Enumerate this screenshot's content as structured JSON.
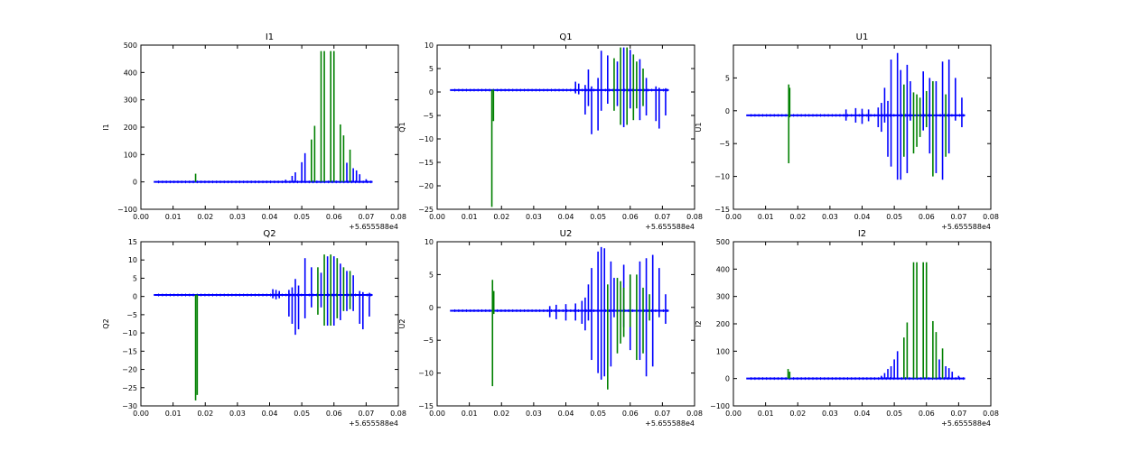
{
  "figure": {
    "colors": {
      "blue": "#0000ff",
      "green": "#008000"
    }
  },
  "chart_data": [
    {
      "type": "line",
      "title": "I1",
      "xlabel": "",
      "ylabel": "I1",
      "x_offset_label": "+5.655588e4",
      "xlim": [
        0.0,
        0.08
      ],
      "ylim": [
        -100,
        500
      ],
      "xticks": [
        "0.00",
        "0.01",
        "0.02",
        "0.03",
        "0.04",
        "0.05",
        "0.06",
        "0.07",
        "0.08"
      ],
      "yticks": [
        "−100",
        "0",
        "100",
        "200",
        "300",
        "400",
        "500"
      ],
      "grid": false,
      "baseline": {
        "x": [
          0.004,
          0.072
        ],
        "y": 0
      },
      "series": [
        {
          "color": "blue",
          "spikes": [
            [
              0.045,
              0,
              8
            ],
            [
              0.047,
              0,
              22
            ],
            [
              0.048,
              0,
              35
            ],
            [
              0.05,
              0,
              72
            ],
            [
              0.051,
              0,
              105
            ],
            [
              0.064,
              0,
              70
            ],
            [
              0.066,
              0,
              50
            ],
            [
              0.067,
              0,
              42
            ],
            [
              0.068,
              0,
              28
            ],
            [
              0.07,
              0,
              10
            ]
          ]
        },
        {
          "color": "green",
          "spikes": [
            [
              0.017,
              0,
              30
            ],
            [
              0.053,
              0,
              155
            ],
            [
              0.054,
              0,
              205
            ],
            [
              0.056,
              0,
              478
            ],
            [
              0.057,
              0,
              478
            ],
            [
              0.059,
              0,
              478
            ],
            [
              0.06,
              0,
              478
            ],
            [
              0.062,
              0,
              210
            ],
            [
              0.063,
              0,
              170
            ],
            [
              0.065,
              0,
              118
            ]
          ]
        }
      ]
    },
    {
      "type": "line",
      "title": "Q1",
      "xlabel": "",
      "ylabel": "Q1",
      "x_offset_label": "+5.655588e4",
      "xlim": [
        0.0,
        0.08
      ],
      "ylim": [
        -25,
        10
      ],
      "xticks": [
        "0.00",
        "0.01",
        "0.02",
        "0.03",
        "0.04",
        "0.05",
        "0.06",
        "0.07",
        "0.08"
      ],
      "yticks": [
        "−25",
        "−20",
        "−15",
        "−10",
        "−5",
        "0",
        "5",
        "10"
      ],
      "grid": false,
      "baseline": {
        "x": [
          0.004,
          0.072
        ],
        "y": 0.4
      },
      "series": [
        {
          "color": "blue",
          "spikes": [
            [
              0.043,
              -0.3,
              2.2
            ],
            [
              0.044,
              -0.5,
              1.8
            ],
            [
              0.046,
              -4.8,
              1.5
            ],
            [
              0.047,
              -3,
              4.8
            ],
            [
              0.048,
              -9,
              1.2
            ],
            [
              0.05,
              -8.2,
              3
            ],
            [
              0.051,
              -4,
              8.8
            ],
            [
              0.053,
              -2.5,
              7.8
            ],
            [
              0.056,
              -3,
              6.5
            ],
            [
              0.058,
              -7.5,
              9.5
            ],
            [
              0.06,
              -3.5,
              9
            ],
            [
              0.063,
              -6,
              7
            ],
            [
              0.065,
              -5,
              3
            ],
            [
              0.068,
              -6.2,
              1.2
            ],
            [
              0.069,
              -7.8,
              0.9
            ],
            [
              0.071,
              -5,
              0.8
            ]
          ]
        },
        {
          "color": "green",
          "spikes": [
            [
              0.017,
              -24.5,
              0.5
            ],
            [
              0.0175,
              -6.2,
              0.5
            ],
            [
              0.055,
              -4,
              7.2
            ],
            [
              0.057,
              -7,
              9.5
            ],
            [
              0.059,
              -7,
              9.5
            ],
            [
              0.061,
              -6,
              8
            ],
            [
              0.062,
              -3.5,
              6.5
            ],
            [
              0.064,
              -3,
              5
            ]
          ]
        }
      ]
    },
    {
      "type": "line",
      "title": "U1",
      "xlabel": "",
      "ylabel": "U1",
      "x_offset_label": "+5.655588e4",
      "xlim": [
        0.0,
        0.08
      ],
      "ylim": [
        -15,
        10
      ],
      "xticks": [
        "0.00",
        "0.01",
        "0.02",
        "0.03",
        "0.04",
        "0.05",
        "0.06",
        "0.07",
        "0.08"
      ],
      "yticks": [
        "−15",
        "−10",
        "−5",
        "0",
        "5"
      ],
      "grid": false,
      "baseline": {
        "x": [
          0.004,
          0.072
        ],
        "y": -0.7
      },
      "series": [
        {
          "color": "blue",
          "spikes": [
            [
              0.035,
              -1.5,
              0.2
            ],
            [
              0.038,
              -1.8,
              0.4
            ],
            [
              0.04,
              -2,
              0.3
            ],
            [
              0.042,
              -1.6,
              0.2
            ],
            [
              0.045,
              -2.5,
              0.5
            ],
            [
              0.046,
              -3.2,
              1.2
            ],
            [
              0.047,
              -1.8,
              3.5
            ],
            [
              0.048,
              -7,
              1.5
            ],
            [
              0.049,
              -8.5,
              7.8
            ],
            [
              0.051,
              -10.5,
              8.8
            ],
            [
              0.052,
              -10.5,
              6.2
            ],
            [
              0.054,
              -9.5,
              7
            ],
            [
              0.055,
              -1.5,
              4.5
            ],
            [
              0.059,
              -3,
              6
            ],
            [
              0.061,
              -6.5,
              5
            ],
            [
              0.063,
              -9.5,
              4.5
            ],
            [
              0.065,
              -10.5,
              7.5
            ],
            [
              0.067,
              -6.5,
              7.8
            ],
            [
              0.069,
              -1.5,
              5
            ],
            [
              0.071,
              -2.5,
              2
            ]
          ]
        },
        {
          "color": "green",
          "spikes": [
            [
              0.0172,
              -8,
              4
            ],
            [
              0.0175,
              -1,
              3.5
            ],
            [
              0.053,
              -7,
              4
            ],
            [
              0.056,
              -6.5,
              2.8
            ],
            [
              0.057,
              -5.5,
              2.5
            ],
            [
              0.058,
              -4,
              2
            ],
            [
              0.06,
              -2.5,
              3
            ],
            [
              0.062,
              -10,
              4.5
            ],
            [
              0.066,
              -7,
              2.5
            ]
          ]
        }
      ]
    },
    {
      "type": "line",
      "title": "Q2",
      "xlabel": "",
      "ylabel": "Q2",
      "x_offset_label": "+5.655588e4",
      "xlim": [
        0.0,
        0.08
      ],
      "ylim": [
        -30,
        15
      ],
      "xticks": [
        "0.00",
        "0.01",
        "0.02",
        "0.03",
        "0.04",
        "0.05",
        "0.06",
        "0.07",
        "0.08"
      ],
      "yticks": [
        "−30",
        "−25",
        "−20",
        "−15",
        "−10",
        "−5",
        "0",
        "5",
        "10",
        "15"
      ],
      "grid": false,
      "baseline": {
        "x": [
          0.004,
          0.072
        ],
        "y": 0.4
      },
      "series": [
        {
          "color": "blue",
          "spikes": [
            [
              0.041,
              -0.5,
              2
            ],
            [
              0.042,
              -0.8,
              1.8
            ],
            [
              0.043,
              -0.5,
              1.5
            ],
            [
              0.046,
              -5.5,
              1.8
            ],
            [
              0.047,
              -7.5,
              2.5
            ],
            [
              0.048,
              -10.5,
              4.8
            ],
            [
              0.049,
              -9,
              3
            ],
            [
              0.051,
              -6,
              10.5
            ],
            [
              0.053,
              -3,
              8
            ],
            [
              0.056,
              -3,
              6.5
            ],
            [
              0.058,
              -8,
              11
            ],
            [
              0.06,
              -8,
              11
            ],
            [
              0.062,
              -6.5,
              9
            ],
            [
              0.064,
              -4,
              7
            ],
            [
              0.066,
              -4,
              5.8
            ],
            [
              0.068,
              -7.5,
              1.5
            ],
            [
              0.069,
              -9,
              1.2
            ],
            [
              0.071,
              -5.5,
              1
            ]
          ]
        },
        {
          "color": "green",
          "spikes": [
            [
              0.017,
              -28.5,
              0.5
            ],
            [
              0.0175,
              -27,
              0.5
            ],
            [
              0.055,
              -5,
              8
            ],
            [
              0.057,
              -8,
              11.5
            ],
            [
              0.059,
              -8,
              11.5
            ],
            [
              0.061,
              -6,
              10.5
            ],
            [
              0.063,
              -4,
              8
            ],
            [
              0.065,
              -3.5,
              7
            ]
          ]
        }
      ]
    },
    {
      "type": "line",
      "title": "U2",
      "xlabel": "",
      "ylabel": "U2",
      "x_offset_label": "+5.655588e4",
      "xlim": [
        0.0,
        0.08
      ],
      "ylim": [
        -15,
        10
      ],
      "xticks": [
        "0.00",
        "0.01",
        "0.02",
        "0.03",
        "0.04",
        "0.05",
        "0.06",
        "0.07",
        "0.08"
      ],
      "yticks": [
        "−15",
        "−10",
        "−5",
        "0",
        "5",
        "10"
      ],
      "grid": false,
      "baseline": {
        "x": [
          0.004,
          0.072
        ],
        "y": -0.5
      },
      "series": [
        {
          "color": "blue",
          "spikes": [
            [
              0.035,
              -1.5,
              0.2
            ],
            [
              0.037,
              -1.8,
              0.4
            ],
            [
              0.04,
              -2,
              0.5
            ],
            [
              0.043,
              -2,
              0.6
            ],
            [
              0.045,
              -2.5,
              1
            ],
            [
              0.046,
              -3.5,
              1.5
            ],
            [
              0.047,
              -2,
              3.5
            ],
            [
              0.048,
              -8,
              6
            ],
            [
              0.05,
              -10,
              8.5
            ],
            [
              0.051,
              -11,
              9.2
            ],
            [
              0.052,
              -10.5,
              9
            ],
            [
              0.054,
              -9,
              7
            ],
            [
              0.055,
              -1.5,
              4.5
            ],
            [
              0.058,
              -3,
              6.5
            ],
            [
              0.06,
              -6.5,
              5
            ],
            [
              0.063,
              -8,
              7
            ],
            [
              0.065,
              -10.5,
              7.5
            ],
            [
              0.067,
              -9,
              8
            ],
            [
              0.069,
              -1.5,
              6
            ],
            [
              0.071,
              -2.5,
              2
            ]
          ]
        },
        {
          "color": "green",
          "spikes": [
            [
              0.0172,
              -12,
              4.2
            ],
            [
              0.0176,
              -1,
              2.5
            ],
            [
              0.053,
              -12.5,
              3.5
            ],
            [
              0.056,
              -7,
              4.5
            ],
            [
              0.057,
              -5.5,
              4
            ],
            [
              0.058,
              -4.5,
              3
            ],
            [
              0.06,
              -3,
              5
            ],
            [
              0.062,
              -8,
              5
            ],
            [
              0.064,
              -7,
              3
            ],
            [
              0.066,
              -2,
              2
            ]
          ]
        }
      ]
    },
    {
      "type": "line",
      "title": "I2",
      "xlabel": "",
      "ylabel": "I2",
      "x_offset_label": "+5.655588e4",
      "xlim": [
        0.0,
        0.08
      ],
      "ylim": [
        -100,
        500
      ],
      "xticks": [
        "0.00",
        "0.01",
        "0.02",
        "0.03",
        "0.04",
        "0.05",
        "0.06",
        "0.07",
        "0.08"
      ],
      "yticks": [
        "−100",
        "0",
        "100",
        "200",
        "300",
        "400",
        "500"
      ],
      "grid": false,
      "baseline": {
        "x": [
          0.004,
          0.072
        ],
        "y": 0
      },
      "series": [
        {
          "color": "blue",
          "spikes": [
            [
              0.046,
              0,
              10
            ],
            [
              0.047,
              0,
              20
            ],
            [
              0.048,
              0,
              35
            ],
            [
              0.049,
              0,
              45
            ],
            [
              0.05,
              0,
              70
            ],
            [
              0.051,
              0,
              100
            ],
            [
              0.064,
              0,
              70
            ],
            [
              0.066,
              0,
              45
            ],
            [
              0.067,
              0,
              38
            ],
            [
              0.068,
              0,
              25
            ],
            [
              0.07,
              0,
              10
            ]
          ]
        },
        {
          "color": "green",
          "spikes": [
            [
              0.017,
              0,
              35
            ],
            [
              0.0175,
              0,
              25
            ],
            [
              0.053,
              0,
              150
            ],
            [
              0.054,
              0,
              205
            ],
            [
              0.056,
              0,
              425
            ],
            [
              0.057,
              0,
              425
            ],
            [
              0.059,
              0,
              425
            ],
            [
              0.06,
              0,
              425
            ],
            [
              0.062,
              0,
              210
            ],
            [
              0.063,
              0,
              170
            ],
            [
              0.065,
              0,
              110
            ]
          ]
        }
      ]
    }
  ]
}
